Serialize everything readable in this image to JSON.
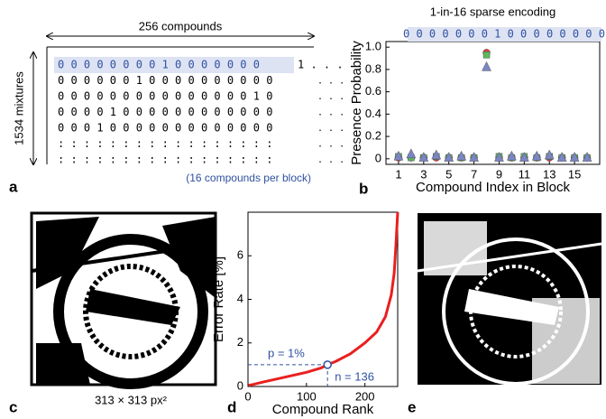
{
  "panel_a": {
    "label": "a",
    "width_label": "256 compounds",
    "height_label": "1534 mixtures",
    "rows": [
      "0 0 0 0 0 0 0 0 1 0 0 0 0 0 0 0",
      "0 0 0 0 0 0 1 0 0 0 0 0 0 0 0 0 0",
      "0 0 0 0 0 0 0 0 0 0 0 0 0 0 0 1 0",
      "0 0 0 0 1 0 0 0 0 0 0 0 0 0 0 0 0",
      "0 0 0 1 0 0 0 0 0 0 0 0 0 0 0 0 0",
      ": : : : : : : : : : : : : : : : :",
      ": : : : : : : : : : : : : : : : :"
    ],
    "row_tail": "1 . . .",
    "dots": [
      ". . .",
      ". . .",
      ". . .",
      ". . .",
      ". . .",
      ". . ."
    ],
    "note": "(16 compounds per block)"
  },
  "panel_c": {
    "label": "c",
    "caption": "313 × 313 px²"
  },
  "panel_e": {
    "label": "e"
  },
  "chart_data": [
    {
      "type": "scatter",
      "label": "b",
      "title": "1-in-16 sparse encoding",
      "encoding": "0 0 0 0 0 0 0 1 0 0 0 0 0 0 0 0",
      "x_label": "Compound Index in Block",
      "y_label": "Presence Probability",
      "x": [
        1,
        2,
        3,
        4,
        5,
        6,
        7,
        8,
        9,
        10,
        11,
        12,
        13,
        14,
        15,
        16
      ],
      "series": [
        {
          "color": "#e0393b",
          "marker": "circle",
          "values": [
            0.01,
            0.01,
            0.01,
            0.01,
            0.01,
            0.01,
            0.01,
            0.95,
            0.01,
            0.01,
            0.01,
            0.01,
            0.01,
            0.01,
            0.01,
            0.01
          ]
        },
        {
          "color": "#5cb85c",
          "marker": "square",
          "values": [
            0.02,
            0.01,
            0.01,
            0.02,
            0.01,
            0.01,
            0.01,
            0.93,
            0.02,
            0.01,
            0.02,
            0.01,
            0.02,
            0.01,
            0.01,
            0.01
          ]
        },
        {
          "color": "#7b86c4",
          "marker": "triangle",
          "values": [
            0.02,
            0.04,
            0.01,
            0.03,
            0.01,
            0.02,
            0.01,
            0.82,
            0.01,
            0.02,
            0.01,
            0.02,
            0.03,
            0.01,
            0.01,
            0.01
          ]
        }
      ],
      "xlim": [
        0,
        17
      ],
      "ylim": [
        -0.05,
        1.05
      ],
      "xticks": [
        1,
        3,
        5,
        7,
        9,
        11,
        13,
        15
      ],
      "yticks": [
        0,
        0.2,
        0.4,
        0.6,
        0.8,
        {
          "value": 1,
          "label": "1.0"
        }
      ]
    },
    {
      "type": "line",
      "label": "d",
      "x_label": "Compound Rank",
      "y_label": "Error Rate [%]",
      "x": [
        1,
        10,
        25,
        50,
        75,
        100,
        125,
        136,
        150,
        175,
        200,
        220,
        235,
        245,
        250,
        253,
        256
      ],
      "series": [
        {
          "color": "#e8201f",
          "values": [
            0.05,
            0.1,
            0.2,
            0.35,
            0.5,
            0.65,
            0.85,
            1,
            1.15,
            1.5,
            2,
            2.5,
            3.2,
            4.2,
            5.2,
            6.5,
            8
          ]
        }
      ],
      "highlight": {
        "x": 136,
        "y": 1,
        "x_text": "n = 136",
        "y_text": "p = 1%"
      },
      "xlim": [
        0,
        256
      ],
      "ylim": [
        0,
        8
      ],
      "xticks": [
        0,
        100,
        200
      ],
      "yticks": [
        0,
        2,
        4,
        6
      ]
    }
  ]
}
